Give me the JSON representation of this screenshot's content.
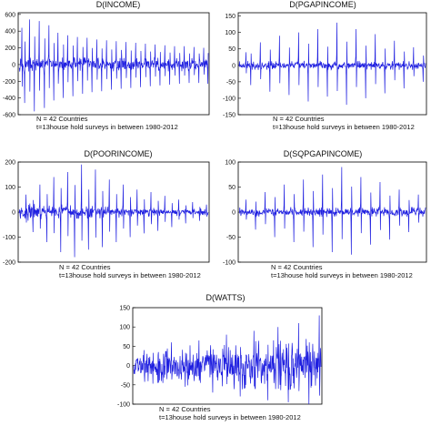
{
  "chart_data": [
    {
      "type": "line",
      "title": "D(INCOME)",
      "yticks": [
        600,
        400,
        200,
        0,
        -200,
        -400,
        -600
      ],
      "ylim": [
        -600,
        620
      ],
      "note_lines": [
        "N = 42 Countries",
        "t=13house hold surveys in between 1980-2012"
      ],
      "series_color": "#1f1fe0",
      "n_points": 546,
      "spikes": [
        {
          "i": 8,
          "v": 440
        },
        {
          "i": 16,
          "v": -460
        },
        {
          "i": 30,
          "v": 540
        },
        {
          "i": 44,
          "v": -560
        },
        {
          "i": 58,
          "v": 520
        },
        {
          "i": 73,
          "v": -520
        },
        {
          "i": 86,
          "v": 470
        },
        {
          "i": 100,
          "v": -430
        },
        {
          "i": 112,
          "v": 380
        },
        {
          "i": 127,
          "v": -400
        },
        {
          "i": 140,
          "v": 350
        },
        {
          "i": 155,
          "v": -380
        },
        {
          "i": 168,
          "v": 330
        },
        {
          "i": 183,
          "v": -350
        },
        {
          "i": 196,
          "v": 320
        },
        {
          "i": 210,
          "v": -330
        },
        {
          "i": 224,
          "v": 300
        },
        {
          "i": 238,
          "v": -320
        },
        {
          "i": 252,
          "v": 290
        },
        {
          "i": 266,
          "v": -300
        },
        {
          "i": 280,
          "v": 280
        },
        {
          "i": 294,
          "v": -290
        },
        {
          "i": 308,
          "v": 270
        },
        {
          "i": 322,
          "v": -280
        },
        {
          "i": 336,
          "v": 260
        },
        {
          "i": 350,
          "v": -270
        },
        {
          "i": 364,
          "v": 250
        },
        {
          "i": 378,
          "v": -260
        },
        {
          "i": 392,
          "v": 240
        },
        {
          "i": 406,
          "v": -250
        },
        {
          "i": 420,
          "v": 230
        },
        {
          "i": 434,
          "v": -240
        },
        {
          "i": 448,
          "v": 220
        },
        {
          "i": 462,
          "v": -230
        },
        {
          "i": 476,
          "v": 220
        },
        {
          "i": 490,
          "v": -220
        },
        {
          "i": 504,
          "v": 210
        },
        {
          "i": 518,
          "v": -220
        },
        {
          "i": 532,
          "v": 200
        },
        {
          "i": 544,
          "v": -230
        }
      ],
      "noise_amp": 90
    },
    {
      "type": "line",
      "title": "D(PGAPINCOME)",
      "yticks": [
        150,
        100,
        50,
        0,
        -50,
        -100,
        -150
      ],
      "ylim": [
        -150,
        160
      ],
      "note_lines": [
        "N = 42 Countries",
        "t=13house hold surveys in between 1980-2012"
      ],
      "series_color": "#1f1fe0",
      "n_points": 546,
      "spikes": [
        {
          "i": 20,
          "v": 40
        },
        {
          "i": 34,
          "v": -60
        },
        {
          "i": 62,
          "v": 70
        },
        {
          "i": 90,
          "v": -80
        },
        {
          "i": 118,
          "v": 90
        },
        {
          "i": 146,
          "v": -90
        },
        {
          "i": 174,
          "v": 100
        },
        {
          "i": 202,
          "v": -110
        },
        {
          "i": 230,
          "v": 110
        },
        {
          "i": 258,
          "v": -95
        },
        {
          "i": 286,
          "v": 130
        },
        {
          "i": 314,
          "v": -120
        },
        {
          "i": 342,
          "v": 110
        },
        {
          "i": 370,
          "v": -100
        },
        {
          "i": 398,
          "v": 95
        },
        {
          "i": 426,
          "v": -85
        },
        {
          "i": 454,
          "v": 75
        },
        {
          "i": 482,
          "v": -70
        },
        {
          "i": 510,
          "v": 55
        },
        {
          "i": 538,
          "v": -50
        }
      ],
      "noise_amp": 14
    },
    {
      "type": "line",
      "title": "D(POORINCOME)",
      "yticks": [
        200,
        100,
        0,
        -100,
        -200
      ],
      "ylim": [
        -200,
        200
      ],
      "note_lines": [
        "N = 42 Countries",
        "t=13house hold surveys in between 1980-2012"
      ],
      "series_color": "#1f1fe0",
      "n_points": 546,
      "spikes": [
        {
          "i": 20,
          "v": 70
        },
        {
          "i": 40,
          "v": -80
        },
        {
          "i": 60,
          "v": 110
        },
        {
          "i": 80,
          "v": -120
        },
        {
          "i": 100,
          "v": 140
        },
        {
          "i": 120,
          "v": -160
        },
        {
          "i": 140,
          "v": 160
        },
        {
          "i": 160,
          "v": -180
        },
        {
          "i": 180,
          "v": 190
        },
        {
          "i": 200,
          "v": -150
        },
        {
          "i": 220,
          "v": 170
        },
        {
          "i": 240,
          "v": -140
        },
        {
          "i": 260,
          "v": 130
        },
        {
          "i": 280,
          "v": -120
        },
        {
          "i": 300,
          "v": 110
        },
        {
          "i": 320,
          "v": -100
        },
        {
          "i": 340,
          "v": 90
        },
        {
          "i": 360,
          "v": -85
        },
        {
          "i": 380,
          "v": 80
        },
        {
          "i": 400,
          "v": -75
        },
        {
          "i": 420,
          "v": 65
        },
        {
          "i": 440,
          "v": -60
        },
        {
          "i": 460,
          "v": 50
        },
        {
          "i": 480,
          "v": -45
        },
        {
          "i": 500,
          "v": 40
        },
        {
          "i": 520,
          "v": -35
        },
        {
          "i": 540,
          "v": 30
        }
      ],
      "noise_amp": 30
    },
    {
      "type": "line",
      "title": "D(SQPGAPINCOME)",
      "yticks": [
        100,
        50,
        0,
        -50,
        -100
      ],
      "ylim": [
        -100,
        100
      ],
      "note_lines": [
        "N = 42 Countries",
        "t=13house hold surveys in between 1980-2012"
      ],
      "series_color": "#1f1fe0",
      "n_points": 546,
      "spikes": [
        {
          "i": 20,
          "v": 25
        },
        {
          "i": 48,
          "v": -35
        },
        {
          "i": 76,
          "v": 40
        },
        {
          "i": 104,
          "v": -50
        },
        {
          "i": 132,
          "v": 55
        },
        {
          "i": 160,
          "v": -60
        },
        {
          "i": 188,
          "v": 65
        },
        {
          "i": 216,
          "v": -70
        },
        {
          "i": 244,
          "v": 75
        },
        {
          "i": 272,
          "v": -80
        },
        {
          "i": 300,
          "v": 90
        },
        {
          "i": 328,
          "v": -85
        },
        {
          "i": 356,
          "v": 70
        },
        {
          "i": 384,
          "v": -65
        },
        {
          "i": 412,
          "v": 60
        },
        {
          "i": 440,
          "v": -55
        },
        {
          "i": 468,
          "v": 45
        },
        {
          "i": 496,
          "v": -40
        },
        {
          "i": 524,
          "v": 35
        }
      ],
      "noise_amp": 10
    },
    {
      "type": "line",
      "title": "D(WATTS)",
      "yticks": [
        150,
        100,
        50,
        0,
        -50,
        -100
      ],
      "ylim": [
        -100,
        150
      ],
      "note_lines": [
        "N = 42 Countries",
        "t=13house hold surveys in between 1980-2012"
      ],
      "series_color": "#1f1fe0",
      "n_points": 546,
      "spikes": [
        {
          "i": 30,
          "v": 40
        },
        {
          "i": 70,
          "v": -45
        },
        {
          "i": 110,
          "v": 60
        },
        {
          "i": 150,
          "v": -55
        },
        {
          "i": 190,
          "v": 65
        },
        {
          "i": 230,
          "v": -70
        },
        {
          "i": 270,
          "v": 80
        },
        {
          "i": 310,
          "v": -80
        },
        {
          "i": 350,
          "v": 90
        },
        {
          "i": 390,
          "v": -90
        },
        {
          "i": 420,
          "v": 100
        },
        {
          "i": 450,
          "v": -95
        },
        {
          "i": 480,
          "v": 110
        },
        {
          "i": 510,
          "v": -100
        },
        {
          "i": 540,
          "v": 130
        }
      ],
      "noise_amp": 60
    }
  ]
}
